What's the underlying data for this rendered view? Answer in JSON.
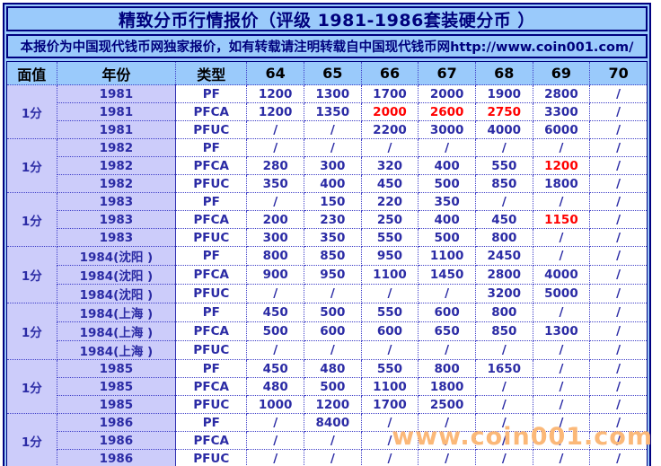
{
  "title": "精致分币行情报价（评级 1981-1986套装硬分币 ）",
  "notice": "本报价为中国现代钱币网独家报价，如有转载请注明转载自中国现代钱币网http://www.coin001.com/",
  "watermark": "www.coin001.com",
  "colors": {
    "frame_border": "#000080",
    "panel_background": "#9ACAFB",
    "year_column_background": "#CCCCFA",
    "value_text": "#2B2BA5",
    "red_highlight": "#FF0000",
    "watermark_text": "#FBB878"
  },
  "table": {
    "headers": [
      "面值",
      "年份",
      "类型",
      "64",
      "65",
      "66",
      "67",
      "68",
      "69",
      "70"
    ],
    "groups": [
      {
        "denomination": "1分",
        "rows": [
          {
            "year": "1981",
            "type": "PF",
            "values": [
              "1200",
              "1300",
              "1700",
              "2000",
              "1900",
              "2800",
              "/"
            ],
            "red": []
          },
          {
            "year": "1981",
            "type": "PFCA",
            "values": [
              "1200",
              "1350",
              "2000",
              "2600",
              "2750",
              "3300",
              "/"
            ],
            "red": [
              2,
              3,
              4
            ]
          },
          {
            "year": "1981",
            "type": "PFUC",
            "values": [
              "/",
              "/",
              "2200",
              "3000",
              "4000",
              "6000",
              "/"
            ],
            "red": []
          }
        ]
      },
      {
        "denomination": "1分",
        "rows": [
          {
            "year": "1982",
            "type": "PF",
            "values": [
              "/",
              "/",
              "/",
              "/",
              "/",
              "/",
              "/"
            ],
            "red": []
          },
          {
            "year": "1982",
            "type": "PFCA",
            "values": [
              "280",
              "300",
              "320",
              "400",
              "550",
              "1200",
              "/"
            ],
            "red": [
              5
            ]
          },
          {
            "year": "1982",
            "type": "PFUC",
            "values": [
              "350",
              "400",
              "450",
              "500",
              "850",
              "1800",
              "/"
            ],
            "red": []
          }
        ]
      },
      {
        "denomination": "1分",
        "rows": [
          {
            "year": "1983",
            "type": "PF",
            "values": [
              "/",
              "150",
              "220",
              "350",
              "/",
              "/",
              "/"
            ],
            "red": []
          },
          {
            "year": "1983",
            "type": "PFCA",
            "values": [
              "200",
              "230",
              "250",
              "400",
              "450",
              "1150",
              "/"
            ],
            "red": [
              5
            ]
          },
          {
            "year": "1983",
            "type": "PFUC",
            "values": [
              "300",
              "350",
              "550",
              "500",
              "800",
              "/",
              "/"
            ],
            "red": []
          }
        ]
      },
      {
        "denomination": "1分",
        "rows": [
          {
            "year": "1984(沈阳 )",
            "type": "PF",
            "values": [
              "800",
              "850",
              "950",
              "1100",
              "2450",
              "/",
              "/"
            ],
            "red": []
          },
          {
            "year": "1984(沈阳 )",
            "type": "PFCA",
            "values": [
              "900",
              "950",
              "1100",
              "1450",
              "2800",
              "4000",
              "/"
            ],
            "red": []
          },
          {
            "year": "1984(沈阳 )",
            "type": "PFUC",
            "values": [
              "/",
              "/",
              "/",
              "/",
              "3200",
              "5000",
              "/"
            ],
            "red": []
          }
        ]
      },
      {
        "denomination": "1分",
        "rows": [
          {
            "year": "1984(上海 )",
            "type": "PF",
            "values": [
              "450",
              "500",
              "550",
              "600",
              "800",
              "/",
              "/"
            ],
            "red": []
          },
          {
            "year": "1984(上海 )",
            "type": "PFCA",
            "values": [
              "500",
              "600",
              "600",
              "650",
              "850",
              "1300",
              "/"
            ],
            "red": []
          },
          {
            "year": "1984(上海 )",
            "type": "PFUC",
            "values": [
              "/",
              "/",
              "/",
              "/",
              "/",
              "/",
              "/"
            ],
            "red": []
          }
        ]
      },
      {
        "denomination": "1分",
        "rows": [
          {
            "year": "1985",
            "type": "PF",
            "values": [
              "450",
              "480",
              "550",
              "800",
              "1650",
              "/",
              "/"
            ],
            "red": []
          },
          {
            "year": "1985",
            "type": "PFCA",
            "values": [
              "480",
              "500",
              "1100",
              "1800",
              "/",
              "/",
              "/"
            ],
            "red": []
          },
          {
            "year": "1985",
            "type": "PFUC",
            "values": [
              "1000",
              "1200",
              "1700",
              "2500",
              "/",
              "/",
              "/"
            ],
            "red": []
          }
        ]
      },
      {
        "denomination": "1分",
        "rows": [
          {
            "year": "1986",
            "type": "PF",
            "values": [
              "/",
              "8400",
              "/",
              "/",
              "/",
              "/",
              "/"
            ],
            "red": []
          },
          {
            "year": "1986",
            "type": "PFCA",
            "values": [
              "/",
              "/",
              "/",
              "/",
              "/",
              "/",
              "/"
            ],
            "red": []
          },
          {
            "year": "1986",
            "type": "PFUC",
            "values": [
              "/",
              "/",
              "/",
              "/",
              "/",
              "/",
              "/"
            ],
            "red": []
          }
        ]
      }
    ]
  }
}
